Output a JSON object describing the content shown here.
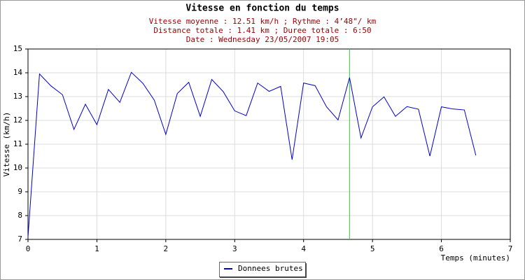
{
  "chart_data": {
    "type": "line",
    "title": "Vitesse en fonction du temps",
    "subtitle": [
      "Vitesse moyenne : 12.51 km/h ; Rythme : 4’48\"/ km",
      "Distance totale : 1.41 km ; Duree totale : 6:50",
      "Date : Wednesday 23/05/2007 19:05"
    ],
    "x_label": "Temps (minutes)",
    "y_label": "Vitesse (km/h)",
    "xlim": [
      0,
      7
    ],
    "xticks": [
      0,
      1,
      2,
      3,
      4,
      5,
      6,
      7
    ],
    "ylim": [
      7,
      15
    ],
    "yticks": [
      7,
      8,
      9,
      10,
      11,
      12,
      13,
      14,
      15
    ],
    "grid": true,
    "cursor_x": 4.667,
    "cursor_color": "#33cc33",
    "x": [
      0,
      0.167,
      0.333,
      0.5,
      0.667,
      0.833,
      1,
      1.167,
      1.333,
      1.5,
      1.667,
      1.833,
      2,
      2.167,
      2.333,
      2.5,
      2.667,
      2.833,
      3,
      3.167,
      3.333,
      3.5,
      3.667,
      3.833,
      4,
      4.167,
      4.333,
      4.5,
      4.667,
      4.833,
      5,
      5.167,
      5.333,
      5.5,
      5.667,
      5.833,
      6,
      6.167,
      6.333,
      6.5
    ],
    "series": [
      {
        "name": "Donnees brutes",
        "color": "#0000cc",
        "values": [
          7.1,
          13.95,
          13.45,
          13.08,
          11.62,
          12.68,
          11.82,
          13.3,
          12.76,
          14.02,
          13.56,
          12.85,
          11.41,
          13.13,
          13.6,
          12.17,
          13.72,
          13.21,
          12.4,
          12.2,
          13.57,
          13.22,
          13.43,
          10.35,
          13.57,
          13.46,
          12.57,
          12.02,
          13.8,
          11.26,
          12.57,
          12.99,
          12.17,
          12.58,
          12.47,
          10.5,
          12.57,
          12.48,
          12.44,
          10.53
        ]
      }
    ]
  }
}
